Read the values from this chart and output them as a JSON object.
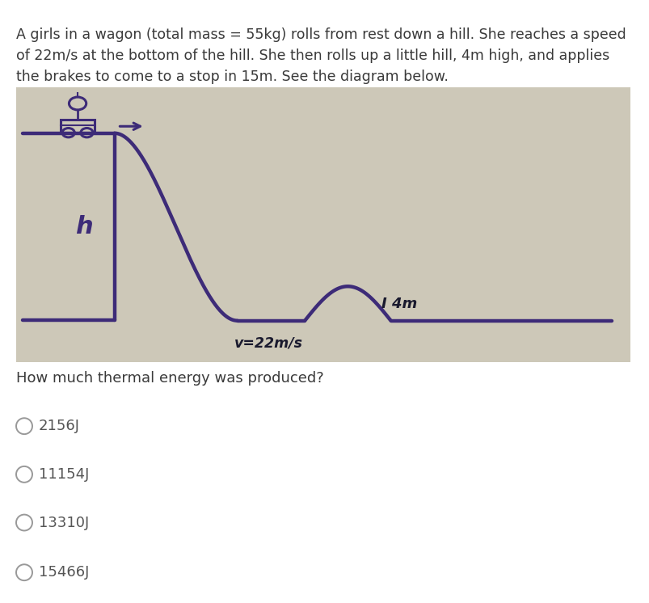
{
  "problem_text_line1": "A girls in a wagon (total mass = 55kg) rolls from rest down a hill. She reaches a speed",
  "problem_text_line2": "of 22m/s at the bottom of the hill. She then rolls up a little hill, 4m high, and applies",
  "problem_text_line3": "the brakes to come to a stop in 15m. See the diagram below.",
  "question_text": "How much thermal energy was produced?",
  "choices": [
    "2156J",
    "11154J",
    "13310J",
    "15466J"
  ],
  "diagram_bg": "#cdc8b8",
  "purple_color": "#3d2b78",
  "body_text_color": "#3a3a3a",
  "choice_text_color": "#555555",
  "label_v": "v=22m/s",
  "label_h": "h",
  "label_hill": "I 4m",
  "title_fontsize": 12.5,
  "choice_fontsize": 13,
  "question_fontsize": 13
}
